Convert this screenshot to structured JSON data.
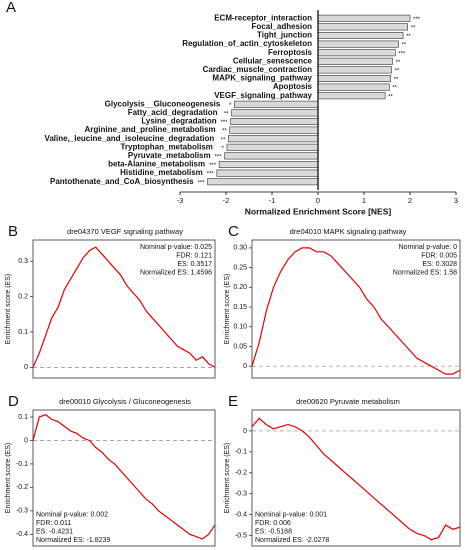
{
  "chart_data": [
    {
      "type": "bar",
      "orientation": "horizontal",
      "panel": "A",
      "categories": [
        "ECM-receptor_interaction",
        "Focal_adhesion",
        "Tight_junction",
        "Regulation_of_actin_cytoskeleton",
        "Ferroptosis",
        "Cellular_senescence",
        "Cardiac_muscle_contraction",
        "MAPK_signaling_pathway",
        "Apoptosis",
        "VEGF_signaling_pathway",
        "Glycolysis__Gluconeogenesis",
        "Fatty_acid_degradation",
        "Lysine_degradation",
        "Arginine_and_proline_metabolism",
        "Valine,_leucine_and_isoleucine_degradation",
        "Tryptophan_metabolism",
        "Pyruvate_metabolism",
        "beta-Alanine_metabolism",
        "Histidine_metabolism",
        "Pantothenate_and_CoA_biosynthesis"
      ],
      "values": [
        2.0,
        1.95,
        1.85,
        1.75,
        1.68,
        1.62,
        1.6,
        1.58,
        1.55,
        1.46,
        -1.82,
        -1.88,
        -1.9,
        -1.92,
        -1.95,
        -1.98,
        -2.03,
        -2.15,
        -2.2,
        -2.4
      ],
      "significance": [
        "***",
        "**",
        "**",
        "**",
        "***",
        "**",
        "**",
        "**",
        "**",
        "**",
        "*",
        "**",
        "***",
        "**",
        "**",
        "*",
        "***",
        "***",
        "***",
        "***"
      ],
      "color": "#d9d9d9",
      "xlabel": "Normalized  Enrichment Score [NES]",
      "xlim": [
        -3,
        3
      ],
      "xticks": [
        -3,
        -2,
        -1,
        0,
        1,
        2,
        3
      ]
    },
    {
      "type": "line",
      "panel": "B",
      "title": "dre04370 VEGF signaling pathway",
      "ylabel": "Enrichment score (ES)",
      "values": [
        0,
        0.04,
        0.09,
        0.14,
        0.17,
        0.22,
        0.25,
        0.28,
        0.31,
        0.33,
        0.34,
        0.32,
        0.3,
        0.28,
        0.26,
        0.23,
        0.21,
        0.19,
        0.16,
        0.14,
        0.12,
        0.1,
        0.08,
        0.06,
        0.05,
        0.04,
        0.02,
        0.03,
        0.01,
        0
      ],
      "color": "#e00000",
      "zero_line": true,
      "ylim": [
        -0.03,
        0.36
      ],
      "yticks": [
        0,
        0.1,
        0.2,
        0.3
      ],
      "annotation_position": "top-right",
      "annotations": [
        "Nominal p-value: 0.025",
        "FDR: 0.121",
        "ES: 0.3517",
        "Normalized ES: 1.4596"
      ]
    },
    {
      "type": "line",
      "panel": "C",
      "title": "dre04010 MAPK signaling pathway",
      "ylabel": "Enrichment score (ES)",
      "values": [
        0,
        0.06,
        0.14,
        0.2,
        0.24,
        0.27,
        0.29,
        0.3,
        0.3,
        0.29,
        0.29,
        0.28,
        0.26,
        0.24,
        0.22,
        0.2,
        0.17,
        0.15,
        0.12,
        0.1,
        0.08,
        0.06,
        0.04,
        0.02,
        0.01,
        0,
        -0.01,
        -0.02,
        -0.02,
        -0.01
      ],
      "color": "#e00000",
      "zero_line": true,
      "ylim": [
        -0.03,
        0.32
      ],
      "yticks": [
        0,
        0.05,
        {
          "value": 0.1,
          "label": "0.10"
        },
        0.15,
        {
          "value": 0.2,
          "label": "0.20"
        },
        0.25,
        {
          "value": 0.3,
          "label": "0.30"
        }
      ],
      "annotation_position": "top-right",
      "annotations": [
        "Nominal p-value: 0",
        "FDR: 0.005",
        "ES: 0.3028",
        "Normalized ES: 1.58"
      ]
    },
    {
      "type": "line",
      "panel": "D",
      "title": "dre00010 Glycolysis / Gluconeogenesis",
      "ylabel": "Enrichment score (ES)",
      "values": [
        0,
        0.1,
        0.11,
        0.09,
        0.08,
        0.06,
        0.04,
        0.03,
        0.01,
        0,
        -0.03,
        -0.05,
        -0.08,
        -0.1,
        -0.13,
        -0.16,
        -0.19,
        -0.22,
        -0.25,
        -0.27,
        -0.3,
        -0.32,
        -0.34,
        -0.36,
        -0.38,
        -0.4,
        -0.41,
        -0.42,
        -0.4,
        -0.36
      ],
      "color": "#e00000",
      "zero_line": true,
      "ylim": [
        -0.45,
        0.13
      ],
      "yticks": [
        -0.4,
        -0.3,
        -0.2,
        -0.1,
        0,
        0.1
      ],
      "annotation_position": "bottom-left",
      "annotations": [
        "Nominal p-value: 0.002",
        "FDR: 0.011",
        "ES: -0.4231",
        "Normalized ES: -1.8239"
      ]
    },
    {
      "type": "line",
      "panel": "E",
      "title": "dre00620 Pyruvate metabolism",
      "ylabel": "Enrichment score (ES)",
      "values": [
        0.02,
        0.06,
        0.03,
        0.01,
        0.02,
        0.03,
        0.02,
        0,
        -0.03,
        -0.07,
        -0.11,
        -0.14,
        -0.17,
        -0.2,
        -0.23,
        -0.26,
        -0.29,
        -0.32,
        -0.35,
        -0.38,
        -0.41,
        -0.44,
        -0.47,
        -0.49,
        -0.5,
        -0.52,
        -0.51,
        -0.45,
        -0.47,
        -0.46
      ],
      "color": "#e00000",
      "zero_line": true,
      "ylim": [
        -0.55,
        0.1
      ],
      "yticks": [
        -0.5,
        -0.4,
        -0.3,
        -0.2,
        -0.1,
        0
      ],
      "annotation_position": "bottom-left",
      "annotations": [
        "Nominal p-value: 0.001",
        "FDR: 0.006",
        "ES: -0.5188",
        "Normalized ES: -2.0278"
      ]
    }
  ]
}
